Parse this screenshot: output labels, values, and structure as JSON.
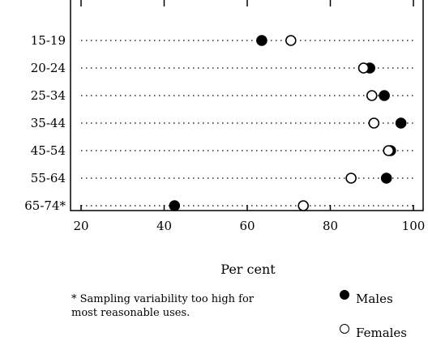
{
  "chart_data": {
    "type": "scatter",
    "title": "",
    "xlabel": "Per cent",
    "ylabel": "",
    "xlim": [
      18,
      100
    ],
    "x_ticks": [
      20,
      40,
      60,
      80,
      100
    ],
    "categories": [
      "15-19",
      "20-24",
      "25-34",
      "35-44",
      "45-54",
      "55-64",
      "65-74*"
    ],
    "series": [
      {
        "name": "Males",
        "marker": "filled-circle",
        "color": "#000000",
        "values": [
          63.5,
          89.5,
          93,
          97,
          94.5,
          93.5,
          42.5
        ]
      },
      {
        "name": "Females",
        "marker": "hollow-circle",
        "color": "#000000",
        "values": [
          70.5,
          88,
          90,
          90.5,
          94,
          85,
          73.5
        ]
      }
    ],
    "grid": "dotted horizontal guide lines",
    "legend_position": "bottom-right"
  },
  "footnote": {
    "line1": "* Sampling variability too high for",
    "line2": "most reasonable uses."
  }
}
